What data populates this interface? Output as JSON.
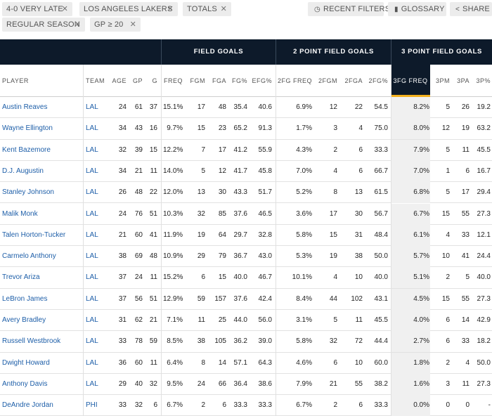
{
  "filters": [
    {
      "label": "4-0 VERY LATE"
    },
    {
      "label": "LOS ANGELES LAKERS"
    },
    {
      "label": "TOTALS"
    },
    {
      "label": "REGULAR SEASON"
    },
    {
      "label": "GP ≥ 20"
    }
  ],
  "actions": {
    "recent_filters": "RECENT FILTERS",
    "glossary": "GLOSSARY",
    "share": "SHARE"
  },
  "groups": {
    "field_goals": "FIELD GOALS",
    "two_point": "2 POINT FIELD GOALS",
    "three_point": "3 POINT FIELD GOALS"
  },
  "columns": [
    "PLAYER",
    "TEAM",
    "AGE",
    "GP",
    "G",
    "FREQ",
    "FGM",
    "FGA",
    "FG%",
    "EFG%",
    "2FG FREQ",
    "2FGM",
    "2FGA",
    "2FG%",
    "3FG FREQ",
    "3PM",
    "3PA",
    "3P%"
  ],
  "rows": [
    [
      "Austin Reaves",
      "LAL",
      "24",
      "61",
      "37",
      "15.1%",
      "17",
      "48",
      "35.4",
      "40.6",
      "6.9%",
      "12",
      "22",
      "54.5",
      "8.2%",
      "5",
      "26",
      "19.2"
    ],
    [
      "Wayne Ellington",
      "LAL",
      "34",
      "43",
      "16",
      "9.7%",
      "15",
      "23",
      "65.2",
      "91.3",
      "1.7%",
      "3",
      "4",
      "75.0",
      "8.0%",
      "12",
      "19",
      "63.2"
    ],
    [
      "Kent Bazemore",
      "LAL",
      "32",
      "39",
      "15",
      "12.2%",
      "7",
      "17",
      "41.2",
      "55.9",
      "4.3%",
      "2",
      "6",
      "33.3",
      "7.9%",
      "5",
      "11",
      "45.5"
    ],
    [
      "D.J. Augustin",
      "LAL",
      "34",
      "21",
      "11",
      "14.0%",
      "5",
      "12",
      "41.7",
      "45.8",
      "7.0%",
      "4",
      "6",
      "66.7",
      "7.0%",
      "1",
      "6",
      "16.7"
    ],
    [
      "Stanley Johnson",
      "LAL",
      "26",
      "48",
      "22",
      "12.0%",
      "13",
      "30",
      "43.3",
      "51.7",
      "5.2%",
      "8",
      "13",
      "61.5",
      "6.8%",
      "5",
      "17",
      "29.4"
    ],
    [
      "Malik Monk",
      "LAL",
      "24",
      "76",
      "51",
      "10.3%",
      "32",
      "85",
      "37.6",
      "46.5",
      "3.6%",
      "17",
      "30",
      "56.7",
      "6.7%",
      "15",
      "55",
      "27.3"
    ],
    [
      "Talen Horton-Tucker",
      "LAL",
      "21",
      "60",
      "41",
      "11.9%",
      "19",
      "64",
      "29.7",
      "32.8",
      "5.8%",
      "15",
      "31",
      "48.4",
      "6.1%",
      "4",
      "33",
      "12.1"
    ],
    [
      "Carmelo Anthony",
      "LAL",
      "38",
      "69",
      "48",
      "10.9%",
      "29",
      "79",
      "36.7",
      "43.0",
      "5.3%",
      "19",
      "38",
      "50.0",
      "5.7%",
      "10",
      "41",
      "24.4"
    ],
    [
      "Trevor Ariza",
      "LAL",
      "37",
      "24",
      "11",
      "15.2%",
      "6",
      "15",
      "40.0",
      "46.7",
      "10.1%",
      "4",
      "10",
      "40.0",
      "5.1%",
      "2",
      "5",
      "40.0"
    ],
    [
      "LeBron James",
      "LAL",
      "37",
      "56",
      "51",
      "12.9%",
      "59",
      "157",
      "37.6",
      "42.4",
      "8.4%",
      "44",
      "102",
      "43.1",
      "4.5%",
      "15",
      "55",
      "27.3"
    ],
    [
      "Avery Bradley",
      "LAL",
      "31",
      "62",
      "21",
      "7.1%",
      "11",
      "25",
      "44.0",
      "56.0",
      "3.1%",
      "5",
      "11",
      "45.5",
      "4.0%",
      "6",
      "14",
      "42.9"
    ],
    [
      "Russell Westbrook",
      "LAL",
      "33",
      "78",
      "59",
      "8.5%",
      "38",
      "105",
      "36.2",
      "39.0",
      "5.8%",
      "32",
      "72",
      "44.4",
      "2.7%",
      "6",
      "33",
      "18.2"
    ],
    [
      "Dwight Howard",
      "LAL",
      "36",
      "60",
      "11",
      "6.4%",
      "8",
      "14",
      "57.1",
      "64.3",
      "4.6%",
      "6",
      "10",
      "60.0",
      "1.8%",
      "2",
      "4",
      "50.0"
    ],
    [
      "Anthony Davis",
      "LAL",
      "29",
      "40",
      "32",
      "9.5%",
      "24",
      "66",
      "36.4",
      "38.6",
      "7.9%",
      "21",
      "55",
      "38.2",
      "1.6%",
      "3",
      "11",
      "27.3"
    ],
    [
      "DeAndre Jordan",
      "PHI",
      "33",
      "32",
      "6",
      "6.7%",
      "2",
      "6",
      "33.3",
      "33.3",
      "6.7%",
      "2",
      "6",
      "33.3",
      "0.0%",
      "0",
      "0",
      "-"
    ]
  ],
  "colors": {
    "header_dark": "#0d1a2a",
    "sort_accent": "#f2b01e",
    "link": "#1d5ea8"
  }
}
